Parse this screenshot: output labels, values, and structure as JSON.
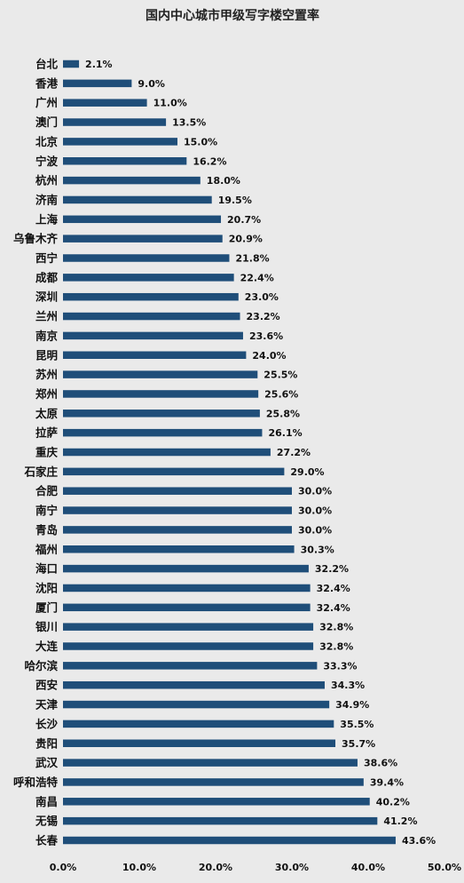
{
  "chart_data": {
    "type": "bar",
    "orientation": "horizontal",
    "title": "国内中心城市甲级写字楼空置率",
    "categories": [
      "台北",
      "香港",
      "广州",
      "澳门",
      "北京",
      "宁波",
      "杭州",
      "济南",
      "上海",
      "乌鲁木齐",
      "西宁",
      "成都",
      "深圳",
      "兰州",
      "南京",
      "昆明",
      "苏州",
      "郑州",
      "太原",
      "拉萨",
      "重庆",
      "石家庄",
      "合肥",
      "南宁",
      "青岛",
      "福州",
      "海口",
      "沈阳",
      "厦门",
      "银川",
      "大连",
      "哈尔滨",
      "西安",
      "天津",
      "长沙",
      "贵阳",
      "武汉",
      "呼和浩特",
      "南昌",
      "无锡",
      "长春"
    ],
    "values": [
      2.1,
      9.0,
      11.0,
      13.5,
      15.0,
      16.2,
      18.0,
      19.5,
      20.7,
      20.9,
      21.8,
      22.4,
      23.0,
      23.2,
      23.6,
      24.0,
      25.5,
      25.6,
      25.8,
      26.1,
      27.2,
      29.0,
      30.0,
      30.0,
      30.0,
      30.3,
      32.2,
      32.4,
      32.4,
      32.8,
      32.8,
      33.3,
      34.3,
      34.9,
      35.5,
      35.7,
      38.6,
      39.4,
      40.2,
      41.2,
      43.6
    ],
    "value_labels": [
      "2.1%",
      "9.0%",
      "11.0%",
      "13.5%",
      "15.0%",
      "16.2%",
      "18.0%",
      "19.5%",
      "20.7%",
      "20.9%",
      "21.8%",
      "22.4%",
      "23.0%",
      "23.2%",
      "23.6%",
      "24.0%",
      "25.5%",
      "25.6%",
      "25.8%",
      "26.1%",
      "27.2%",
      "29.0%",
      "30.0%",
      "30.0%",
      "30.0%",
      "30.3%",
      "32.2%",
      "32.4%",
      "32.4%",
      "32.8%",
      "32.8%",
      "33.3%",
      "34.3%",
      "34.9%",
      "35.5%",
      "35.7%",
      "38.6%",
      "39.4%",
      "40.2%",
      "41.2%",
      "43.6%"
    ],
    "xlim": [
      0,
      50
    ],
    "x_ticks": [
      0,
      10,
      20,
      30,
      40,
      50
    ],
    "x_tick_labels": [
      "0.0%",
      "10.0%",
      "20.0%",
      "30.0%",
      "40.0%",
      "50.0%"
    ],
    "xlabel": "",
    "ylabel": "",
    "grid": false,
    "legend": "none",
    "bar_color": "#1f4e79",
    "background_color": "#eaeaea"
  }
}
